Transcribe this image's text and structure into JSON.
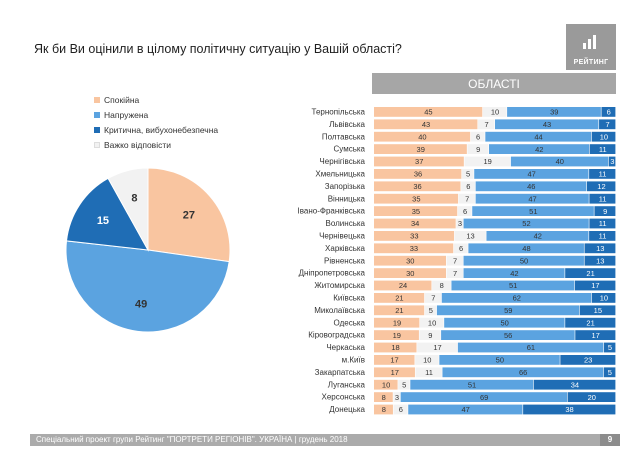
{
  "title": "Як би Ви оцінили в цілому політичну ситуацію у Вашій області?",
  "logo_text": "РЕЙТИНГ",
  "region_header": "ОБЛАСТІ",
  "colors": {
    "calm": "#f9c5a0",
    "tense": "#5ba3e0",
    "critical": "#1f6db5",
    "hard": "#f2f2f2"
  },
  "chart_data": [
    {
      "type": "pie",
      "categories": [
        "Спокійна",
        "Напружена",
        "Критична, вибухонебезпечна",
        "Важко відповісти"
      ],
      "values": [
        27,
        49,
        15,
        8
      ],
      "legend": "top"
    },
    {
      "type": "bar",
      "stacked": true,
      "orientation": "horizontal",
      "categories": [
        "Тернопільська",
        "Львівська",
        "Полтавська",
        "Сумська",
        "Чернігівська",
        "Хмельницька",
        "Запорізька",
        "Вінницька",
        "Івано-Франківська",
        "Волинська",
        "Чернівецька",
        "Харківська",
        "Рівненська",
        "Дніпропетровська",
        "Житомирська",
        "Київська",
        "Миколаївська",
        "Одеська",
        "Кіровоградська",
        "Черкаська",
        "м.Київ",
        "Закарпатська",
        "Луганська",
        "Херсонська",
        "Донецька"
      ],
      "series": [
        {
          "name": "Спокійна",
          "values": [
            45,
            43,
            40,
            39,
            37,
            36,
            36,
            35,
            35,
            34,
            33,
            33,
            30,
            30,
            24,
            21,
            21,
            19,
            19,
            18,
            17,
            17,
            10,
            8,
            8
          ]
        },
        {
          "name": "Важко відповісти",
          "values": [
            10,
            7,
            6,
            9,
            19,
            5,
            6,
            7,
            6,
            3,
            13,
            6,
            7,
            7,
            8,
            7,
            5,
            10,
            9,
            17,
            10,
            11,
            5,
            3,
            6
          ]
        },
        {
          "name": "Напружена",
          "values": [
            39,
            43,
            44,
            42,
            40,
            47,
            46,
            47,
            51,
            52,
            42,
            48,
            50,
            42,
            51,
            62,
            59,
            50,
            56,
            61,
            50,
            66,
            51,
            69,
            47
          ]
        },
        {
          "name": "Критична, вибухонебезпечна",
          "values": [
            6,
            7,
            10,
            11,
            3,
            11,
            12,
            11,
            9,
            11,
            11,
            13,
            13,
            21,
            17,
            10,
            15,
            21,
            17,
            5,
            23,
            5,
            34,
            20,
            38
          ]
        }
      ]
    }
  ],
  "footer": {
    "text": "Спеціальний проект групи Рейтинг \"ПОРТРЕТИ РЕГІОНІВ\". УКРАЇНА | грудень 2018",
    "page": "9"
  }
}
